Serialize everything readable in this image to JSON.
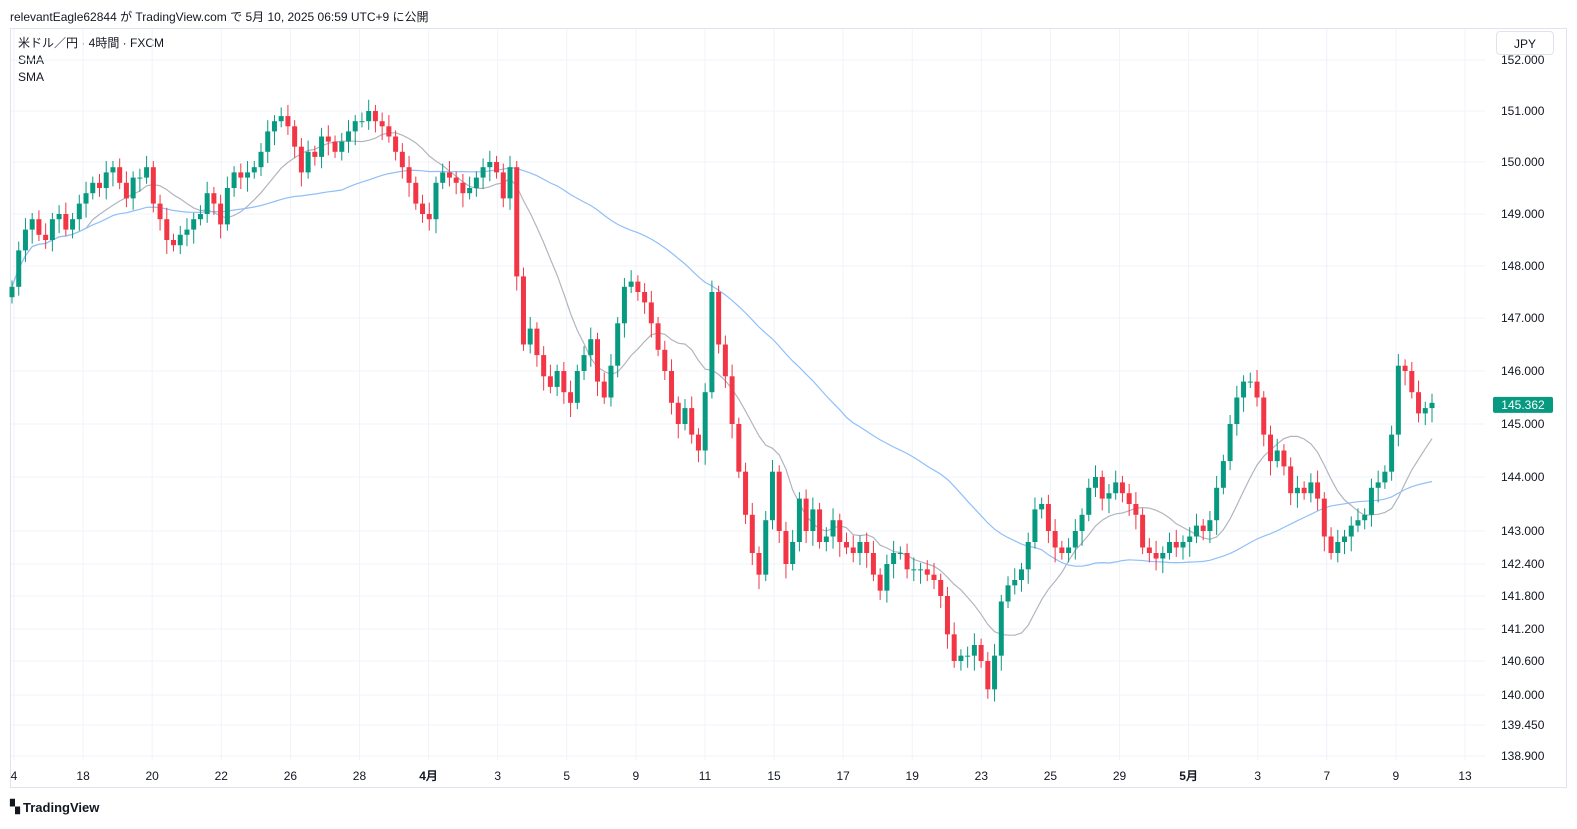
{
  "publisher_line": "relevantEagle62844 が TradingView.com で 5月 10, 2025 06:59 UTC+9 に公開",
  "legend": {
    "symbol": "米ドル／円 · 4時間 · FXCM",
    "indicator1": "SMA",
    "indicator2": "SMA"
  },
  "currency_button": "JPY",
  "brand": {
    "name": "TradingView",
    "logo_icon": "tradingview-logo-icon"
  },
  "colors": {
    "up": "#089981",
    "down": "#f23645",
    "sma_fast": "#b2b5be",
    "sma_slow": "#90bff9",
    "grid": "#f0f3fa"
  },
  "chart_data": {
    "type": "candlestick",
    "title": "米ドル／円 · 4時間 · FXCM",
    "ylabel": "",
    "xlabel": "",
    "grid": true,
    "ylim": [
      138.6,
      152.4
    ],
    "y_ticks": [
      "152.000",
      "151.000",
      "150.000",
      "149.000",
      "148.000",
      "147.000",
      "146.000",
      "145.000",
      "144.000",
      "143.000",
      "142.400",
      "141.800",
      "141.200",
      "140.600",
      "140.000",
      "139.450",
      "138.900"
    ],
    "x_ticks": [
      {
        "label": "4",
        "bold": false
      },
      {
        "label": "18",
        "bold": false
      },
      {
        "label": "20",
        "bold": false
      },
      {
        "label": "22",
        "bold": false
      },
      {
        "label": "26",
        "bold": false
      },
      {
        "label": "28",
        "bold": false
      },
      {
        "label": "4月",
        "bold": true
      },
      {
        "label": "3",
        "bold": false
      },
      {
        "label": "5",
        "bold": false
      },
      {
        "label": "9",
        "bold": false
      },
      {
        "label": "11",
        "bold": false
      },
      {
        "label": "15",
        "bold": false
      },
      {
        "label": "17",
        "bold": false
      },
      {
        "label": "19",
        "bold": false
      },
      {
        "label": "23",
        "bold": false
      },
      {
        "label": "25",
        "bold": false
      },
      {
        "label": "29",
        "bold": false
      },
      {
        "label": "5月",
        "bold": true
      },
      {
        "label": "3",
        "bold": false
      },
      {
        "label": "7",
        "bold": false
      },
      {
        "label": "9",
        "bold": false
      },
      {
        "label": "13",
        "bold": false
      }
    ],
    "last_price": "145.362",
    "close": [
      147.6,
      148.3,
      148.7,
      148.9,
      148.6,
      148.5,
      148.9,
      149.0,
      148.7,
      148.9,
      149.2,
      149.4,
      149.6,
      149.5,
      149.8,
      149.9,
      149.6,
      149.3,
      149.7,
      149.7,
      149.9,
      149.2,
      148.9,
      148.5,
      148.4,
      148.6,
      148.7,
      148.9,
      149.0,
      149.4,
      149.2,
      148.8,
      149.5,
      149.8,
      149.7,
      149.8,
      149.9,
      150.2,
      150.6,
      150.8,
      150.9,
      150.7,
      150.3,
      149.8,
      150.2,
      150.1,
      150.5,
      150.4,
      150.2,
      150.4,
      150.6,
      150.8,
      150.8,
      151.0,
      150.8,
      150.7,
      150.5,
      150.2,
      149.9,
      149.6,
      149.2,
      149.0,
      148.9,
      149.6,
      149.8,
      149.7,
      149.6,
      149.4,
      149.5,
      149.7,
      149.9,
      150.0,
      149.8,
      149.3,
      149.9,
      147.8,
      146.5,
      146.8,
      146.3,
      145.9,
      145.7,
      146.0,
      145.6,
      145.4,
      146.0,
      146.3,
      146.6,
      145.8,
      145.5,
      146.1,
      146.9,
      147.6,
      147.7,
      147.5,
      147.3,
      146.9,
      146.4,
      146.0,
      145.4,
      145.0,
      145.3,
      144.8,
      144.5,
      145.6,
      147.5,
      146.5,
      145.9,
      145.0,
      144.1,
      143.3,
      142.6,
      142.2,
      143.2,
      144.1,
      143.0,
      142.4,
      142.8,
      143.6,
      143.0,
      143.4,
      142.8,
      142.9,
      143.2,
      142.8,
      142.7,
      142.6,
      142.8,
      142.6,
      142.2,
      141.9,
      142.4,
      142.6,
      142.6,
      142.3,
      142.3,
      142.3,
      142.2,
      142.1,
      141.8,
      141.1,
      140.6,
      140.7,
      140.7,
      140.9,
      140.6,
      140.1,
      140.7,
      141.7,
      142.0,
      142.1,
      142.3,
      142.8,
      143.4,
      143.5,
      143.0,
      142.7,
      142.6,
      142.7,
      143.0,
      143.3,
      143.8,
      144.0,
      143.6,
      143.7,
      143.9,
      143.7,
      143.5,
      143.3,
      142.7,
      142.6,
      142.5,
      142.6,
      142.8,
      142.7,
      142.8,
      142.9,
      143.1,
      143.0,
      143.2,
      143.8,
      144.3,
      145.0,
      145.5,
      145.8,
      145.8,
      145.5,
      144.8,
      144.3,
      144.5,
      144.2,
      143.7,
      143.8,
      143.7,
      143.9,
      143.6,
      142.9,
      142.6,
      142.8,
      142.9,
      143.1,
      143.2,
      143.3,
      143.8,
      143.9,
      144.1,
      144.8,
      146.1,
      146.0,
      145.6,
      145.2,
      145.3,
      145.4
    ]
  }
}
